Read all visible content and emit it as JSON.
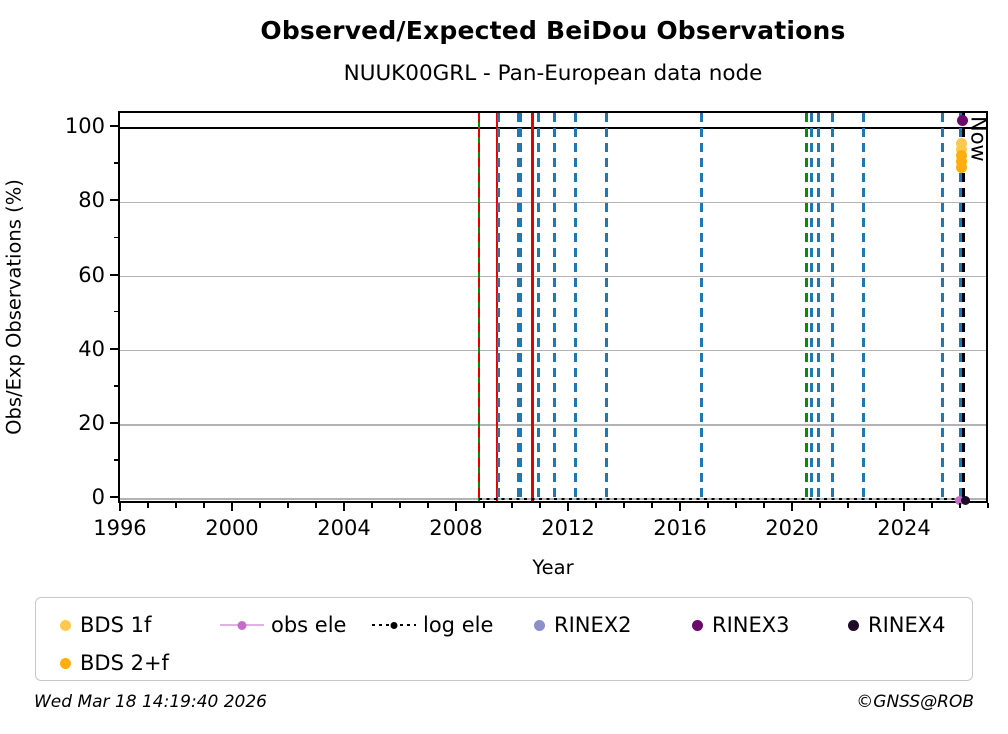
{
  "title": "Observed/Expected BeiDou Observations",
  "subtitle": "NUUK00GRL - Pan-European data node",
  "footer": {
    "timestamp": "Wed Mar 18 14:19:40 2026",
    "credit": "©GNSS@ROB"
  },
  "now_label": "Now",
  "colors": {
    "event_blue": "#1f77b4",
    "event_green": "#0a8a0a",
    "event_red": "#e00000",
    "now_black": "#000000",
    "grid_gray": "#b3b3b3"
  },
  "legend": {
    "items": [
      {
        "label": "BDS 1f",
        "marker": "dot",
        "color": "#ffc94f"
      },
      {
        "label": "obs ele",
        "marker": "line-dot",
        "color": "#c76bc8",
        "line_color": "#dfb3e4"
      },
      {
        "label": "log ele",
        "marker": "dotted-line",
        "color": "#000000"
      },
      {
        "label": "RINEX2",
        "marker": "dot",
        "color": "#8e8ecb"
      },
      {
        "label": "RINEX3",
        "marker": "dot",
        "color": "#6b0a6b"
      },
      {
        "label": "RINEX4",
        "marker": "dot",
        "color": "#1e0b28"
      },
      {
        "label": "BDS 2+f",
        "marker": "dot",
        "color": "#ffae0c"
      }
    ]
  },
  "chart_data": {
    "type": "scatter",
    "title": "Observed/Expected BeiDou Observations",
    "subtitle": "NUUK00GRL - Pan-European data node",
    "xlabel": "Year",
    "ylabel": "Obs/Exp Observations (%)",
    "xlim": [
      1995.93,
      2027.0
    ],
    "ylim": [
      -1.6,
      104.1
    ],
    "x_major_ticks": [
      1996,
      2000,
      2004,
      2008,
      2012,
      2016,
      2020,
      2024
    ],
    "x_minor_step": 1,
    "y_major_ticks": [
      0,
      20,
      40,
      60,
      80,
      100
    ],
    "y_minor_ticks": [
      10,
      30,
      50,
      70,
      90
    ],
    "y_gridlines": [
      0,
      20,
      40,
      60,
      80
    ],
    "grid": "horizontal",
    "reference_line_y": 100,
    "legend_position": "below",
    "now_line": {
      "year": 2026.05,
      "label": "Now",
      "style": "dashed",
      "color": "#000000",
      "width": 3
    },
    "log_ele_line": {
      "y": 0,
      "x_start": 2008.75,
      "x_end": 2026.1,
      "style": "dotted",
      "color": "#000000"
    },
    "event_lines": [
      {
        "year": 2008.75,
        "color": "#0a8a0a",
        "style": "solid",
        "width": 2.5
      },
      {
        "year": 2008.75,
        "color": "#e00000",
        "style": "dashed",
        "width": 2.5
      },
      {
        "year": 2009.4,
        "color": "#e00000",
        "style": "solid",
        "width": 2.5
      },
      {
        "year": 2009.44,
        "color": "#1f77b4",
        "style": "dashed",
        "width": 3
      },
      {
        "year": 2010.2,
        "color": "#1f77b4",
        "style": "dashed",
        "width": 5
      },
      {
        "year": 2010.67,
        "color": "#e00000",
        "style": "solid",
        "width": 2.5
      },
      {
        "year": 2010.88,
        "color": "#1f77b4",
        "style": "dashed",
        "width": 3
      },
      {
        "year": 2011.46,
        "color": "#1f77b4",
        "style": "dashed",
        "width": 3
      },
      {
        "year": 2012.2,
        "color": "#1f77b4",
        "style": "dashed",
        "width": 3
      },
      {
        "year": 2013.3,
        "color": "#1f77b4",
        "style": "dashed",
        "width": 3
      },
      {
        "year": 2016.68,
        "color": "#1f77b4",
        "style": "dashed",
        "width": 3
      },
      {
        "year": 2020.46,
        "color": "#0a8a0a",
        "style": "dashed",
        "width": 3
      },
      {
        "year": 2020.64,
        "color": "#1f77b4",
        "style": "dashed",
        "width": 3
      },
      {
        "year": 2020.88,
        "color": "#1f77b4",
        "style": "dashed",
        "width": 3
      },
      {
        "year": 2021.36,
        "color": "#1f77b4",
        "style": "dashed",
        "width": 3
      },
      {
        "year": 2022.5,
        "color": "#1f77b4",
        "style": "dashed",
        "width": 3
      },
      {
        "year": 2025.3,
        "color": "#1f77b4",
        "style": "dashed",
        "width": 3
      },
      {
        "year": 2025.95,
        "color": "#1f77b4",
        "style": "dashed",
        "width": 3
      }
    ],
    "series": [
      {
        "name": "BDS 1f",
        "color": "#ffc94f",
        "marker_size": 11,
        "points": [
          {
            "x": 2025.97,
            "y": 95.8
          },
          {
            "x": 2026.0,
            "y": 94.3
          }
        ]
      },
      {
        "name": "BDS 2+f",
        "color": "#ffae0c",
        "marker_size": 11,
        "points": [
          {
            "x": 2025.99,
            "y": 92.6
          },
          {
            "x": 2026.0,
            "y": 91.0
          },
          {
            "x": 2025.97,
            "y": 89.3
          }
        ]
      },
      {
        "name": "obs ele",
        "color": "#c76bc8",
        "marker_size": 9,
        "points": [
          {
            "x": 2025.92,
            "y": -0.3
          }
        ]
      },
      {
        "name": "log ele",
        "color": "#000000",
        "marker_size": 0,
        "points": []
      },
      {
        "name": "RINEX2",
        "color": "#8e8ecb",
        "marker_size": 10,
        "points": []
      },
      {
        "name": "RINEX3",
        "color": "#6b0a6b",
        "marker_size": 11,
        "points": [
          {
            "x": 2026.03,
            "y": 102.0
          }
        ]
      },
      {
        "name": "RINEX4",
        "color": "#1e0b28",
        "marker_size": 9,
        "points": [
          {
            "x": 2026.12,
            "y": -0.3
          }
        ]
      }
    ]
  }
}
